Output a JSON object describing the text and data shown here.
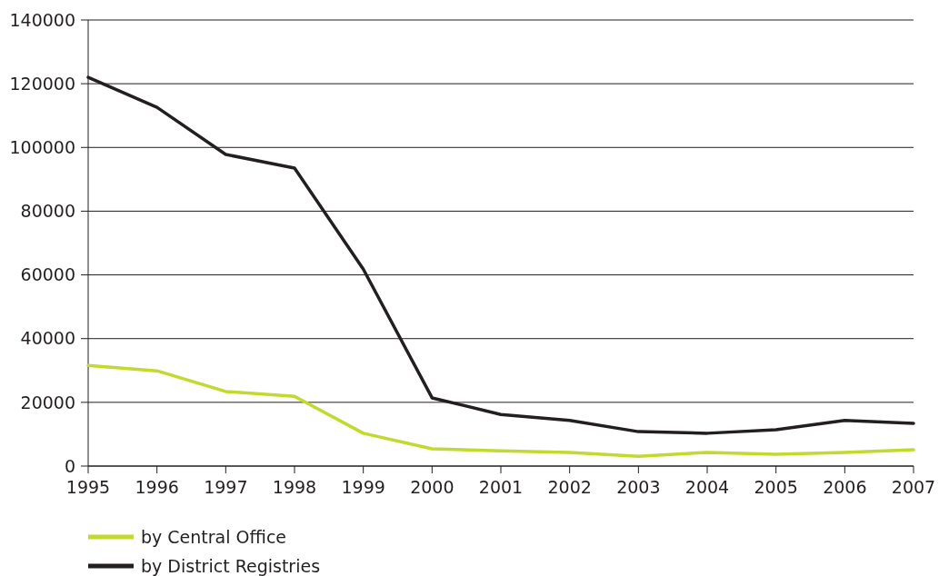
{
  "chart_data": {
    "type": "line",
    "x": [
      1995,
      1996,
      1997,
      1998,
      1999,
      2000,
      2001,
      2002,
      2003,
      2004,
      2005,
      2006,
      2007
    ],
    "xlim": [
      1995,
      2007
    ],
    "xticks": [
      1995,
      1996,
      1997,
      1998,
      1999,
      2000,
      2001,
      2002,
      2003,
      2004,
      2005,
      2006,
      2007
    ],
    "ylim": [
      0,
      140000
    ],
    "yticks": [
      0,
      20000,
      40000,
      60000,
      80000,
      100000,
      120000,
      140000
    ],
    "series": [
      {
        "name": "by Central Office",
        "color": "#c2d92e",
        "values": [
          31600,
          29900,
          23400,
          21900,
          10300,
          5400,
          4800,
          4300,
          3100,
          4300,
          3700,
          4300,
          5100
        ]
      },
      {
        "name": "by District Registries",
        "color": "#231f20",
        "values": [
          122000,
          112600,
          97800,
          93500,
          61800,
          21400,
          16200,
          14300,
          10800,
          10300,
          11400,
          14300,
          13400
        ]
      }
    ],
    "grid": "y",
    "legend": "bottom left",
    "marker": "none",
    "line_style": "solid"
  }
}
